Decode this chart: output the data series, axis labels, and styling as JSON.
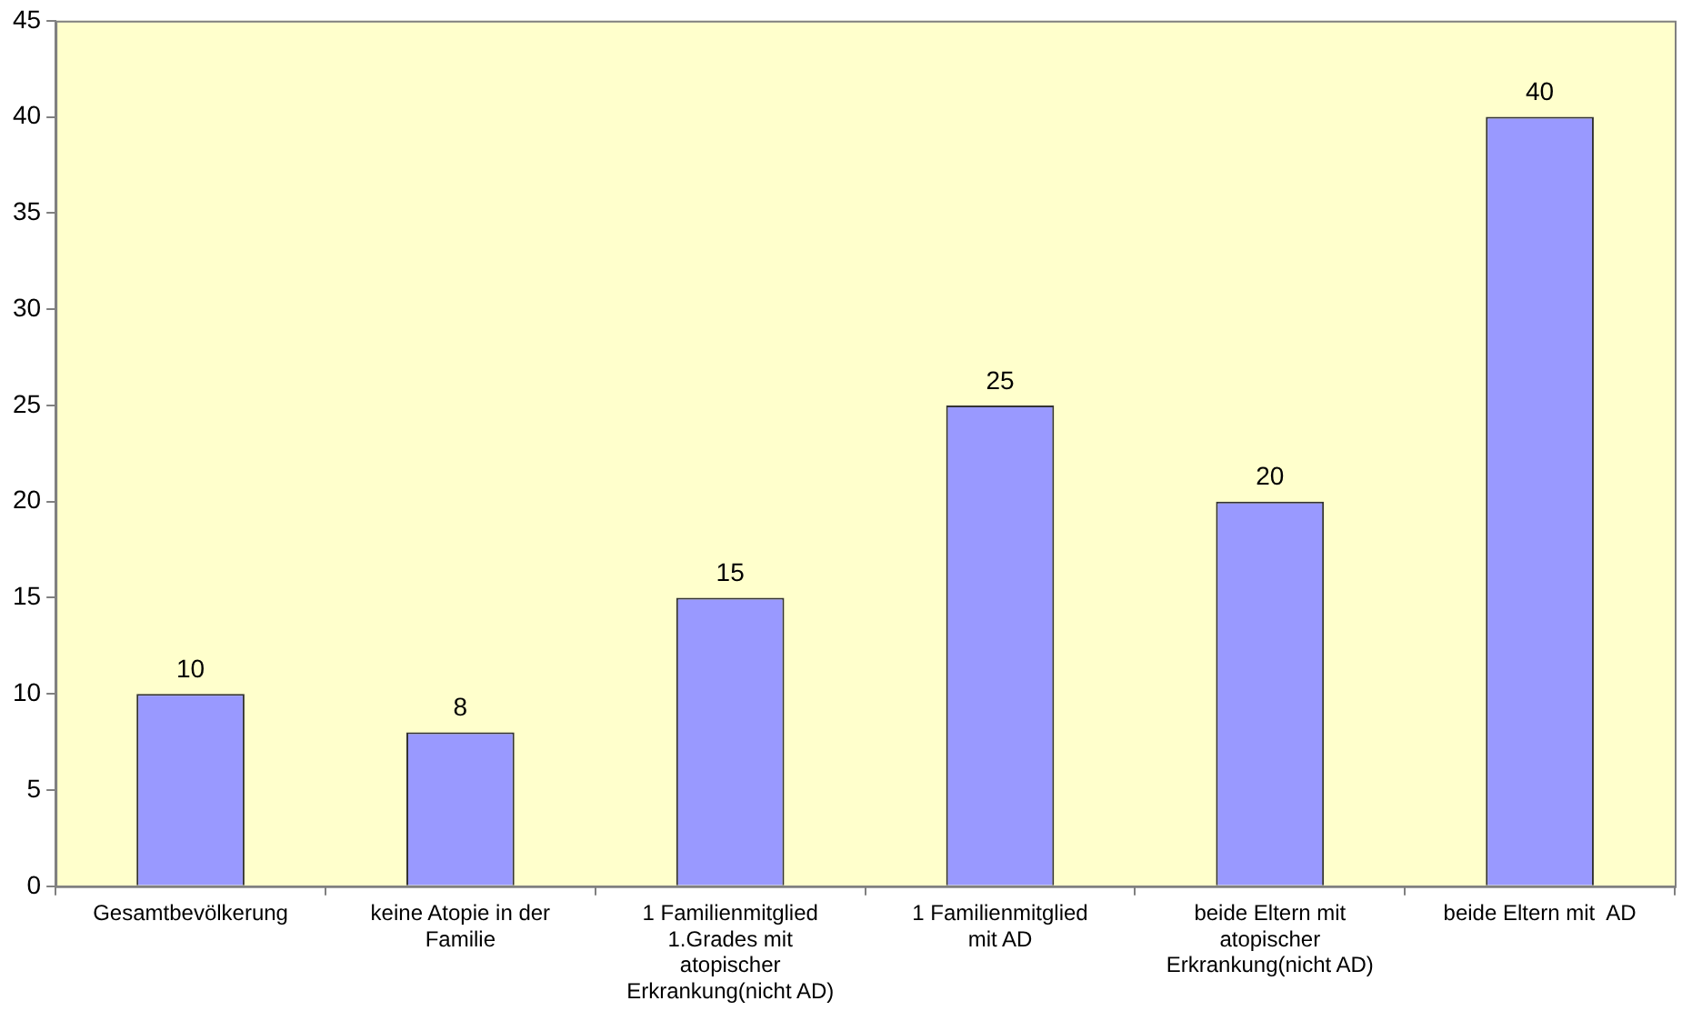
{
  "chart_data": {
    "type": "bar",
    "categories": [
      "Gesamtbevölkerung",
      "keine Atopie in der Familie",
      "1 Familienmitglied 1.Grades mit atopischer Erkrankung(nicht AD)",
      "1 Familienmitglied mit AD",
      "beide Eltern mit atopischer Erkrankung(nicht AD)",
      "beide Eltern mit  AD"
    ],
    "values": [
      10,
      8,
      15,
      25,
      20,
      40
    ],
    "color": "#9999ff",
    "ylim": [
      0,
      45
    ],
    "yticks": [
      0,
      5,
      10,
      15,
      20,
      25,
      30,
      35,
      40,
      45
    ],
    "grid": false,
    "legend": false,
    "data_labels": true
  }
}
